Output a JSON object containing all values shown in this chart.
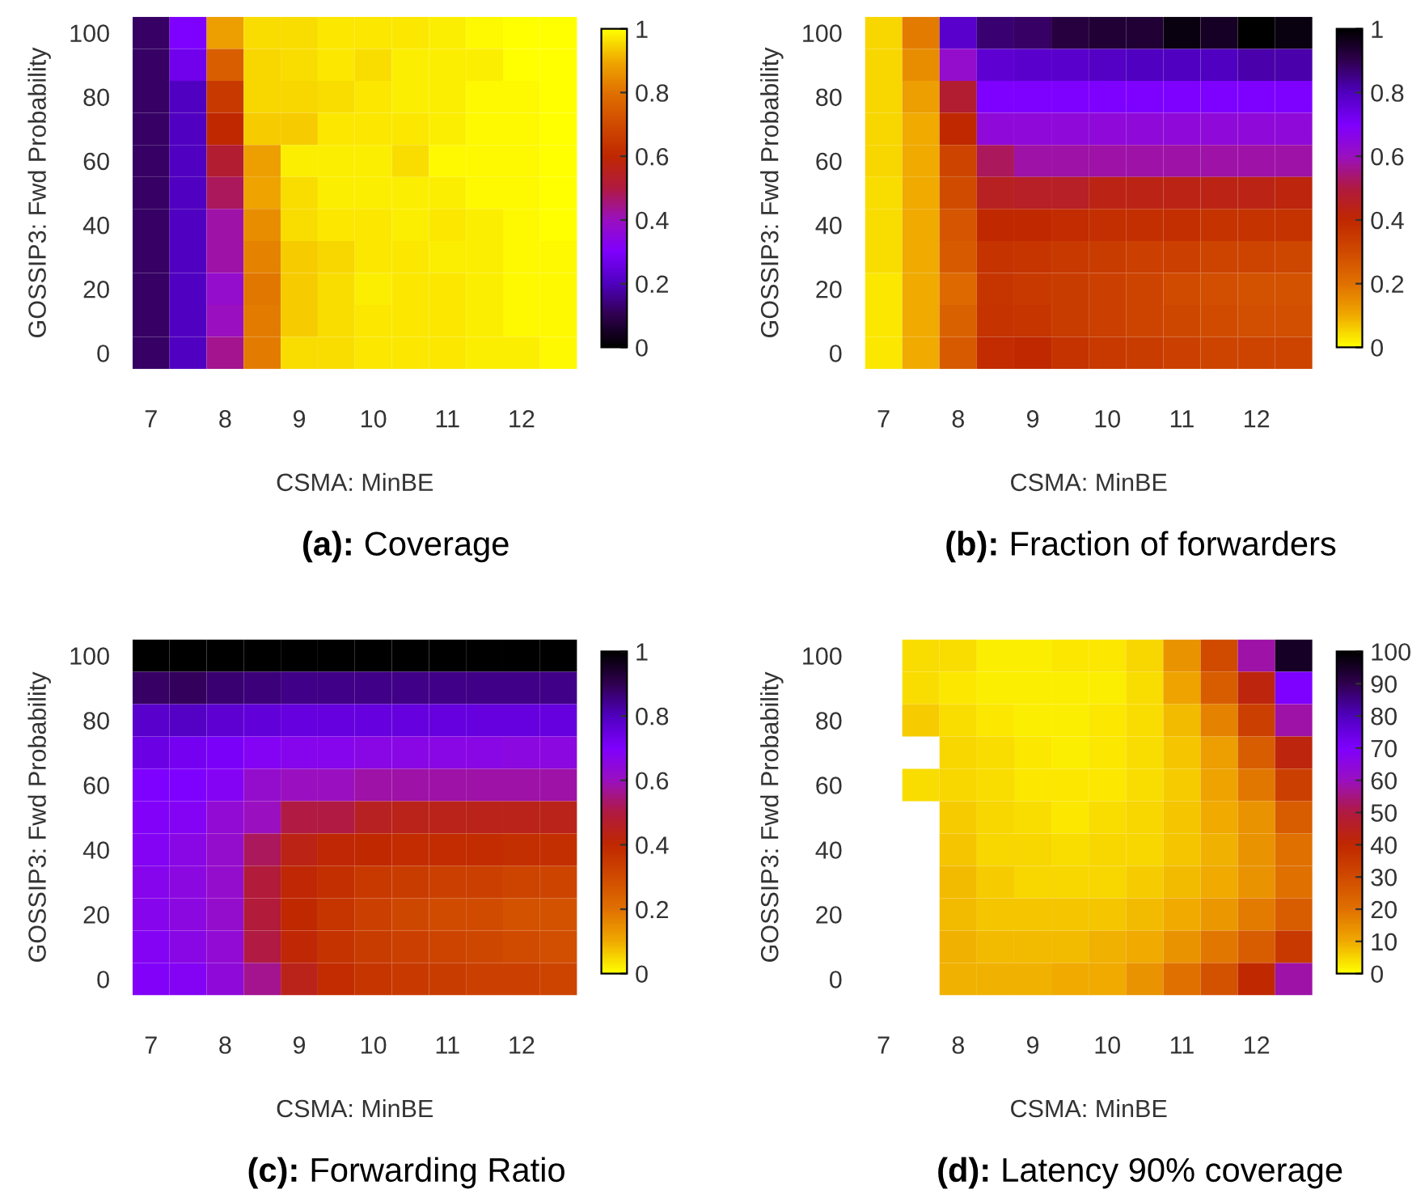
{
  "chart_data": [
    {
      "type": "heatmap",
      "title": "(a): Coverage",
      "xlabel": "CSMA: MinBE",
      "ylabel": "GOSSIP3: Fwd Probability",
      "categories": [
        "7",
        null,
        "8",
        null,
        "9",
        null,
        "10",
        null,
        "11",
        null,
        "12",
        null
      ],
      "y_categories": [
        "100",
        null,
        "80",
        null,
        "60",
        null,
        "40",
        null,
        "20",
        null,
        "0"
      ],
      "clim": [
        0,
        1
      ],
      "cticks": [
        0,
        0.2,
        0.4,
        0.6,
        0.8,
        1
      ],
      "cells": [
        [
          0.12,
          0.3,
          0.88,
          0.96,
          0.96,
          0.97,
          0.97,
          0.97,
          0.98,
          0.99,
          1,
          1
        ],
        [
          0.12,
          0.27,
          0.75,
          0.95,
          0.96,
          0.97,
          0.96,
          0.98,
          0.98,
          0.98,
          1,
          1
        ],
        [
          0.12,
          0.2,
          0.65,
          0.95,
          0.95,
          0.96,
          0.97,
          0.98,
          0.98,
          0.99,
          0.99,
          1
        ],
        [
          0.12,
          0.2,
          0.6,
          0.94,
          0.94,
          0.97,
          0.97,
          0.97,
          0.98,
          0.99,
          0.99,
          1
        ],
        [
          0.12,
          0.2,
          0.52,
          0.88,
          0.98,
          0.98,
          0.98,
          0.96,
          0.99,
          0.99,
          0.99,
          1
        ],
        [
          0.12,
          0.2,
          0.48,
          0.89,
          0.96,
          0.98,
          0.98,
          0.98,
          0.98,
          0.99,
          0.99,
          1
        ],
        [
          0.12,
          0.2,
          0.42,
          0.85,
          0.96,
          0.97,
          0.97,
          0.98,
          0.97,
          0.98,
          0.99,
          1
        ],
        [
          0.12,
          0.2,
          0.42,
          0.83,
          0.94,
          0.95,
          0.97,
          0.97,
          0.98,
          0.98,
          0.99,
          0.99
        ],
        [
          0.12,
          0.2,
          0.38,
          0.81,
          0.94,
          0.96,
          0.98,
          0.97,
          0.97,
          0.98,
          0.99,
          0.99
        ],
        [
          0.12,
          0.2,
          0.4,
          0.82,
          0.94,
          0.96,
          0.97,
          0.97,
          0.97,
          0.98,
          0.99,
          0.99
        ],
        [
          0.12,
          0.2,
          0.44,
          0.82,
          0.96,
          0.96,
          0.97,
          0.97,
          0.97,
          0.98,
          0.98,
          0.99
        ]
      ]
    },
    {
      "type": "heatmap",
      "title": "(b): Fraction of forwarders",
      "xlabel": "CSMA: MinBE",
      "ylabel": "GOSSIP3: Fwd Probability",
      "categories": [
        "7",
        null,
        "8",
        null,
        "9",
        null,
        "10",
        null,
        "11",
        null,
        "12",
        null
      ],
      "y_categories": [
        "100",
        null,
        "80",
        null,
        "60",
        null,
        "40",
        null,
        "20",
        null,
        "0"
      ],
      "clim": [
        0,
        1
      ],
      "cticks": [
        0,
        0.2,
        0.4,
        0.6,
        0.8,
        1
      ],
      "cells": [
        [
          0.05,
          0.18,
          0.78,
          0.87,
          0.88,
          0.92,
          0.93,
          0.93,
          0.98,
          0.95,
          1,
          0.98
        ],
        [
          0.05,
          0.15,
          0.62,
          0.77,
          0.78,
          0.78,
          0.79,
          0.8,
          0.8,
          0.8,
          0.82,
          0.82
        ],
        [
          0.05,
          0.12,
          0.48,
          0.7,
          0.7,
          0.7,
          0.7,
          0.7,
          0.7,
          0.7,
          0.7,
          0.7
        ],
        [
          0.05,
          0.1,
          0.4,
          0.64,
          0.64,
          0.64,
          0.64,
          0.64,
          0.64,
          0.64,
          0.64,
          0.64
        ],
        [
          0.05,
          0.1,
          0.32,
          0.52,
          0.58,
          0.58,
          0.58,
          0.58,
          0.58,
          0.58,
          0.58,
          0.58
        ],
        [
          0.04,
          0.1,
          0.3,
          0.45,
          0.46,
          0.46,
          0.43,
          0.43,
          0.43,
          0.43,
          0.43,
          0.42
        ],
        [
          0.04,
          0.1,
          0.27,
          0.4,
          0.4,
          0.39,
          0.38,
          0.38,
          0.38,
          0.37,
          0.37,
          0.37
        ],
        [
          0.04,
          0.1,
          0.26,
          0.37,
          0.36,
          0.35,
          0.34,
          0.33,
          0.33,
          0.32,
          0.32,
          0.31
        ],
        [
          0.03,
          0.1,
          0.22,
          0.36,
          0.35,
          0.34,
          0.33,
          0.32,
          0.3,
          0.29,
          0.28,
          0.28
        ],
        [
          0.03,
          0.1,
          0.24,
          0.37,
          0.36,
          0.34,
          0.33,
          0.32,
          0.31,
          0.3,
          0.29,
          0.29
        ],
        [
          0.03,
          0.1,
          0.26,
          0.39,
          0.4,
          0.37,
          0.35,
          0.34,
          0.33,
          0.32,
          0.32,
          0.32
        ]
      ]
    },
    {
      "type": "heatmap",
      "title": "(c): Forwarding Ratio",
      "xlabel": "CSMA: MinBE",
      "ylabel": "GOSSIP3: Fwd Probability",
      "categories": [
        "7",
        null,
        "8",
        null,
        "9",
        null,
        "10",
        null,
        "11",
        null,
        "12",
        null
      ],
      "y_categories": [
        "100",
        null,
        "80",
        null,
        "60",
        null,
        "40",
        null,
        "20",
        null,
        "0"
      ],
      "clim": [
        0,
        1
      ],
      "cticks": [
        0,
        0.2,
        0.4,
        0.6,
        0.8,
        1
      ],
      "cells": [
        [
          1,
          1,
          1,
          1,
          1,
          1,
          1,
          1,
          1,
          1,
          1,
          1
        ],
        [
          0.88,
          0.89,
          0.87,
          0.86,
          0.85,
          0.85,
          0.85,
          0.85,
          0.85,
          0.85,
          0.85,
          0.85
        ],
        [
          0.78,
          0.79,
          0.77,
          0.76,
          0.75,
          0.75,
          0.75,
          0.75,
          0.75,
          0.75,
          0.75,
          0.75
        ],
        [
          0.74,
          0.72,
          0.71,
          0.68,
          0.67,
          0.67,
          0.66,
          0.66,
          0.66,
          0.66,
          0.65,
          0.65
        ],
        [
          0.7,
          0.7,
          0.68,
          0.62,
          0.6,
          0.6,
          0.58,
          0.58,
          0.58,
          0.58,
          0.58,
          0.58
        ],
        [
          0.69,
          0.68,
          0.63,
          0.6,
          0.5,
          0.5,
          0.45,
          0.44,
          0.44,
          0.44,
          0.44,
          0.44
        ],
        [
          0.68,
          0.66,
          0.62,
          0.52,
          0.43,
          0.41,
          0.4,
          0.39,
          0.39,
          0.39,
          0.38,
          0.38
        ],
        [
          0.67,
          0.65,
          0.62,
          0.49,
          0.41,
          0.38,
          0.35,
          0.34,
          0.33,
          0.33,
          0.32,
          0.32
        ],
        [
          0.67,
          0.65,
          0.62,
          0.49,
          0.4,
          0.36,
          0.33,
          0.31,
          0.3,
          0.3,
          0.28,
          0.28
        ],
        [
          0.68,
          0.66,
          0.63,
          0.5,
          0.41,
          0.37,
          0.34,
          0.33,
          0.32,
          0.31,
          0.3,
          0.29
        ],
        [
          0.69,
          0.68,
          0.64,
          0.56,
          0.44,
          0.39,
          0.36,
          0.35,
          0.34,
          0.33,
          0.33,
          0.32
        ]
      ]
    },
    {
      "type": "heatmap",
      "title": "(d): Latency 90% coverage",
      "xlabel": "CSMA: MinBE",
      "ylabel": "GOSSIP3: Fwd Probability",
      "categories": [
        "7",
        null,
        "8",
        null,
        "9",
        null,
        "10",
        null,
        "11",
        null,
        "12",
        null
      ],
      "y_categories": [
        "100",
        null,
        "80",
        null,
        "60",
        null,
        "40",
        null,
        "20",
        null,
        "0"
      ],
      "clim": [
        0,
        100
      ],
      "cticks": [
        0,
        10,
        20,
        30,
        40,
        50,
        60,
        70,
        80,
        90,
        100
      ],
      "cells": [
        [
          null,
          4,
          4,
          2,
          2,
          3,
          3,
          5,
          14,
          30,
          58,
          95
        ],
        [
          null,
          4,
          3,
          2,
          2,
          2,
          2,
          4,
          11,
          25,
          42,
          70
        ],
        [
          null,
          6,
          4,
          3,
          2,
          2,
          3,
          4,
          8,
          17,
          33,
          58
        ],
        [
          null,
          null,
          5,
          4,
          3,
          2,
          3,
          4,
          7,
          12,
          25,
          42
        ],
        [
          null,
          4,
          5,
          4,
          3,
          3,
          3,
          4,
          6,
          11,
          19,
          33
        ],
        [
          null,
          null,
          6,
          5,
          4,
          3,
          4,
          5,
          7,
          10,
          14,
          25
        ],
        [
          null,
          null,
          7,
          5,
          5,
          4,
          5,
          5,
          7,
          9,
          14,
          20
        ],
        [
          null,
          null,
          8,
          6,
          5,
          5,
          5,
          6,
          8,
          10,
          14,
          20
        ],
        [
          null,
          null,
          8,
          7,
          7,
          7,
          7,
          8,
          10,
          13,
          18,
          25
        ],
        [
          null,
          null,
          9,
          8,
          8,
          8,
          9,
          10,
          14,
          19,
          25,
          35
        ],
        [
          null,
          null,
          9,
          9,
          9,
          10,
          10,
          14,
          20,
          28,
          40,
          58
        ]
      ]
    }
  ]
}
